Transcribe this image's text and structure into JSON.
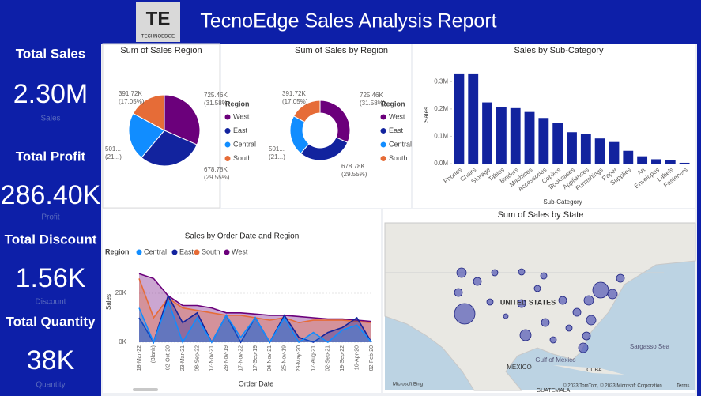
{
  "header": {
    "title": "TecnoEdge Sales Analysis Report",
    "logo_mark": "TE",
    "logo_text": "TECHNOEDGE"
  },
  "kpis": [
    {
      "title": "Total Sales",
      "value": "2.30M",
      "label": "Sales"
    },
    {
      "title": "Total Profit",
      "value": "286.40K",
      "label": "Profit"
    },
    {
      "title": "Total Discount",
      "value": "1.56K",
      "label": "Discount"
    },
    {
      "title": "Total Quantity",
      "value": "38K",
      "label": "Quantity"
    }
  ],
  "chart_data": [
    {
      "type": "pie",
      "title": "Sum of Sales Region",
      "legend_title": "Region",
      "categories": [
        "West",
        "East",
        "Central",
        "South"
      ],
      "values": [
        725.46,
        678.78,
        501.24,
        391.72
      ],
      "value_labels": [
        "725.46K",
        "678.78K",
        "501...",
        "391.72K"
      ],
      "percent_labels": [
        "(31.58%)",
        "(29.55%)",
        "(21...)",
        "(17.05%)"
      ],
      "colors": [
        "#6b007b",
        "#12239e",
        "#118dff",
        "#e66c37"
      ]
    },
    {
      "type": "donut",
      "title": "Sum of Sales by Region",
      "legend_title": "Region",
      "categories": [
        "West",
        "East",
        "Central",
        "South"
      ],
      "values": [
        725.46,
        678.78,
        501.24,
        391.72
      ],
      "value_labels": [
        "725.46K",
        "678.78K",
        "501...",
        "391.72K"
      ],
      "percent_labels": [
        "(31.58%)",
        "(29.55%)",
        "(21...)",
        "(17.05%)"
      ],
      "colors": [
        "#6b007b",
        "#12239e",
        "#118dff",
        "#e66c37"
      ]
    },
    {
      "type": "bar",
      "title": "Sales by Sub-Category",
      "x_label": "Sub-Category",
      "y_label": "Sales",
      "categories": [
        "Phones",
        "Chairs",
        "Storage",
        "Tables",
        "Binders",
        "Machines",
        "Accessories",
        "Copiers",
        "Bookcases",
        "Appliances",
        "Furnishings",
        "Paper",
        "Supplies",
        "Art",
        "Envelopes",
        "Labels",
        "Fasteners"
      ],
      "values": [
        0.33,
        0.33,
        0.224,
        0.207,
        0.203,
        0.189,
        0.167,
        0.15,
        0.115,
        0.107,
        0.092,
        0.079,
        0.047,
        0.027,
        0.016,
        0.012,
        0.003
      ],
      "color": "#12239e",
      "ylim": [
        0,
        0.35
      ],
      "yticks": [
        {
          "value": 0,
          "label": "0.0M"
        },
        {
          "value": 0.1,
          "label": "0.1M"
        },
        {
          "value": 0.2,
          "label": "0.2M"
        },
        {
          "value": 0.3,
          "label": "0.3M"
        }
      ]
    },
    {
      "type": "area",
      "title": "Sales by Order Date and Region",
      "x_label": "Order Date",
      "y_label": "Sales",
      "legend_title": "Region",
      "categories": [
        "18-Mar-22",
        "(Blank)",
        "02-Oct-20",
        "23-Mar-21",
        "08-Sep-22",
        "17-Nov-21",
        "28-Nov-19",
        "17-Nov-22",
        "17-Sep-19",
        "04-Nov-21",
        "25-Nov-19",
        "29-May-20",
        "17-Aug-21",
        "02-Sep-21",
        "19-Sep-22",
        "16-Apr-20",
        "02-Feb-20"
      ],
      "series": [
        {
          "name": "Central",
          "color": "#118dff",
          "values": [
            14000,
            0,
            17000,
            0,
            10000,
            0,
            11000,
            2000,
            10000,
            0,
            10000,
            0,
            4000,
            0,
            5000,
            7000,
            0
          ]
        },
        {
          "name": "East",
          "color": "#12239e",
          "values": [
            10000,
            0,
            19000,
            8000,
            12000,
            0,
            11000,
            0,
            10000,
            0,
            11000,
            2000,
            0,
            4000,
            6000,
            10000,
            0
          ]
        },
        {
          "name": "South",
          "color": "#e66c37",
          "values": [
            26000,
            10000,
            18000,
            14000,
            13000,
            12000,
            11000,
            11000,
            10000,
            9000,
            10000,
            8000,
            9000,
            9000,
            9000,
            8500,
            8000
          ]
        },
        {
          "name": "West",
          "color": "#6b007b",
          "values": [
            28000,
            26000,
            19000,
            15000,
            15000,
            14000,
            12000,
            12000,
            11500,
            11000,
            11000,
            10500,
            10000,
            9500,
            9500,
            9000,
            8500
          ]
        }
      ],
      "ylim": [
        0,
        30000
      ],
      "yticks": [
        {
          "value": 0,
          "label": "0K"
        },
        {
          "value": 20000,
          "label": "20K"
        }
      ]
    }
  ],
  "map": {
    "title": "Sum of Sales by State",
    "labels": [
      "UNITED STATES",
      "Gulf of Mexico",
      "Sargasso Sea",
      "MEXICO",
      "CUBA",
      "GUATEMALA"
    ],
    "attribution": "© 2023 TomTom, © 2023 Microsoft Corporation",
    "terms": "Terms",
    "bing": "Microsoft Bing"
  }
}
